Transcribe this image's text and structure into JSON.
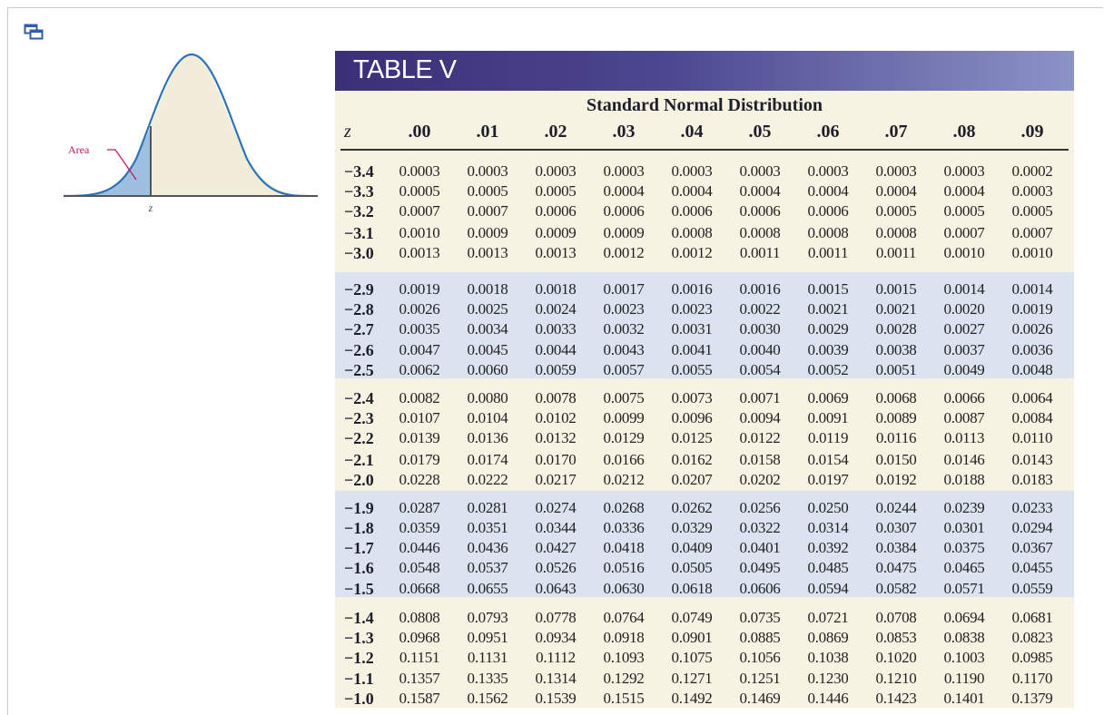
{
  "icons": {
    "window": "restore-window-icon"
  },
  "figure": {
    "area_label": "Area",
    "z_label": "z"
  },
  "table": {
    "banner_title": "TABLE V",
    "subtitle": "Standard Normal Distribution",
    "z_header": "z",
    "columns": [
      ".00",
      ".01",
      ".02",
      ".03",
      ".04",
      ".05",
      ".06",
      ".07",
      ".08",
      ".09"
    ],
    "blocks": [
      {
        "shaded": false,
        "rows": [
          {
            "z": "−3.4",
            "values": [
              "0.0003",
              "0.0003",
              "0.0003",
              "0.0003",
              "0.0003",
              "0.0003",
              "0.0003",
              "0.0003",
              "0.0003",
              "0.0002"
            ]
          },
          {
            "z": "−3.3",
            "values": [
              "0.0005",
              "0.0005",
              "0.0005",
              "0.0004",
              "0.0004",
              "0.0004",
              "0.0004",
              "0.0004",
              "0.0004",
              "0.0003"
            ]
          },
          {
            "z": "−3.2",
            "values": [
              "0.0007",
              "0.0007",
              "0.0006",
              "0.0006",
              "0.0006",
              "0.0006",
              "0.0006",
              "0.0005",
              "0.0005",
              "0.0005"
            ]
          },
          {
            "z": "−3.1",
            "values": [
              "0.0010",
              "0.0009",
              "0.0009",
              "0.0009",
              "0.0008",
              "0.0008",
              "0.0008",
              "0.0008",
              "0.0007",
              "0.0007"
            ]
          },
          {
            "z": "−3.0",
            "values": [
              "0.0013",
              "0.0013",
              "0.0013",
              "0.0012",
              "0.0012",
              "0.0011",
              "0.0011",
              "0.0011",
              "0.0010",
              "0.0010"
            ]
          }
        ]
      },
      {
        "shaded": true,
        "rows": [
          {
            "z": "−2.9",
            "values": [
              "0.0019",
              "0.0018",
              "0.0018",
              "0.0017",
              "0.0016",
              "0.0016",
              "0.0015",
              "0.0015",
              "0.0014",
              "0.0014"
            ]
          },
          {
            "z": "−2.8",
            "values": [
              "0.0026",
              "0.0025",
              "0.0024",
              "0.0023",
              "0.0023",
              "0.0022",
              "0.0021",
              "0.0021",
              "0.0020",
              "0.0019"
            ]
          },
          {
            "z": "−2.7",
            "values": [
              "0.0035",
              "0.0034",
              "0.0033",
              "0.0032",
              "0.0031",
              "0.0030",
              "0.0029",
              "0.0028",
              "0.0027",
              "0.0026"
            ]
          },
          {
            "z": "−2.6",
            "values": [
              "0.0047",
              "0.0045",
              "0.0044",
              "0.0043",
              "0.0041",
              "0.0040",
              "0.0039",
              "0.0038",
              "0.0037",
              "0.0036"
            ]
          },
          {
            "z": "−2.5",
            "values": [
              "0.0062",
              "0.0060",
              "0.0059",
              "0.0057",
              "0.0055",
              "0.0054",
              "0.0052",
              "0.0051",
              "0.0049",
              "0.0048"
            ]
          }
        ]
      },
      {
        "shaded": false,
        "rows": [
          {
            "z": "−2.4",
            "values": [
              "0.0082",
              "0.0080",
              "0.0078",
              "0.0075",
              "0.0073",
              "0.0071",
              "0.0069",
              "0.0068",
              "0.0066",
              "0.0064"
            ]
          },
          {
            "z": "−2.3",
            "values": [
              "0.0107",
              "0.0104",
              "0.0102",
              "0.0099",
              "0.0096",
              "0.0094",
              "0.0091",
              "0.0089",
              "0.0087",
              "0.0084"
            ]
          },
          {
            "z": "−2.2",
            "values": [
              "0.0139",
              "0.0136",
              "0.0132",
              "0.0129",
              "0.0125",
              "0.0122",
              "0.0119",
              "0.0116",
              "0.0113",
              "0.0110"
            ]
          },
          {
            "z": "−2.1",
            "values": [
              "0.0179",
              "0.0174",
              "0.0170",
              "0.0166",
              "0.0162",
              "0.0158",
              "0.0154",
              "0.0150",
              "0.0146",
              "0.0143"
            ]
          },
          {
            "z": "−2.0",
            "values": [
              "0.0228",
              "0.0222",
              "0.0217",
              "0.0212",
              "0.0207",
              "0.0202",
              "0.0197",
              "0.0192",
              "0.0188",
              "0.0183"
            ]
          }
        ]
      },
      {
        "shaded": true,
        "rows": [
          {
            "z": "−1.9",
            "values": [
              "0.0287",
              "0.0281",
              "0.0274",
              "0.0268",
              "0.0262",
              "0.0256",
              "0.0250",
              "0.0244",
              "0.0239",
              "0.0233"
            ]
          },
          {
            "z": "−1.8",
            "values": [
              "0.0359",
              "0.0351",
              "0.0344",
              "0.0336",
              "0.0329",
              "0.0322",
              "0.0314",
              "0.0307",
              "0.0301",
              "0.0294"
            ]
          },
          {
            "z": "−1.7",
            "values": [
              "0.0446",
              "0.0436",
              "0.0427",
              "0.0418",
              "0.0409",
              "0.0401",
              "0.0392",
              "0.0384",
              "0.0375",
              "0.0367"
            ]
          },
          {
            "z": "−1.6",
            "values": [
              "0.0548",
              "0.0537",
              "0.0526",
              "0.0516",
              "0.0505",
              "0.0495",
              "0.0485",
              "0.0475",
              "0.0465",
              "0.0455"
            ]
          },
          {
            "z": "−1.5",
            "values": [
              "0.0668",
              "0.0655",
              "0.0643",
              "0.0630",
              "0.0618",
              "0.0606",
              "0.0594",
              "0.0582",
              "0.0571",
              "0.0559"
            ]
          }
        ]
      },
      {
        "shaded": false,
        "rows": [
          {
            "z": "−1.4",
            "values": [
              "0.0808",
              "0.0793",
              "0.0778",
              "0.0764",
              "0.0749",
              "0.0735",
              "0.0721",
              "0.0708",
              "0.0694",
              "0.0681"
            ]
          },
          {
            "z": "−1.3",
            "values": [
              "0.0968",
              "0.0951",
              "0.0934",
              "0.0918",
              "0.0901",
              "0.0885",
              "0.0869",
              "0.0853",
              "0.0838",
              "0.0823"
            ]
          },
          {
            "z": "−1.2",
            "values": [
              "0.1151",
              "0.1131",
              "0.1112",
              "0.1093",
              "0.1075",
              "0.1056",
              "0.1038",
              "0.1020",
              "0.1003",
              "0.0985"
            ]
          },
          {
            "z": "−1.1",
            "values": [
              "0.1357",
              "0.1335",
              "0.1314",
              "0.1292",
              "0.1271",
              "0.1251",
              "0.1230",
              "0.1210",
              "0.1190",
              "0.1170"
            ]
          },
          {
            "z": "−1.0",
            "values": [
              "0.1587",
              "0.1562",
              "0.1539",
              "0.1515",
              "0.1492",
              "0.1469",
              "0.1446",
              "0.1423",
              "0.1401",
              "0.1379"
            ]
          }
        ]
      }
    ]
  }
}
